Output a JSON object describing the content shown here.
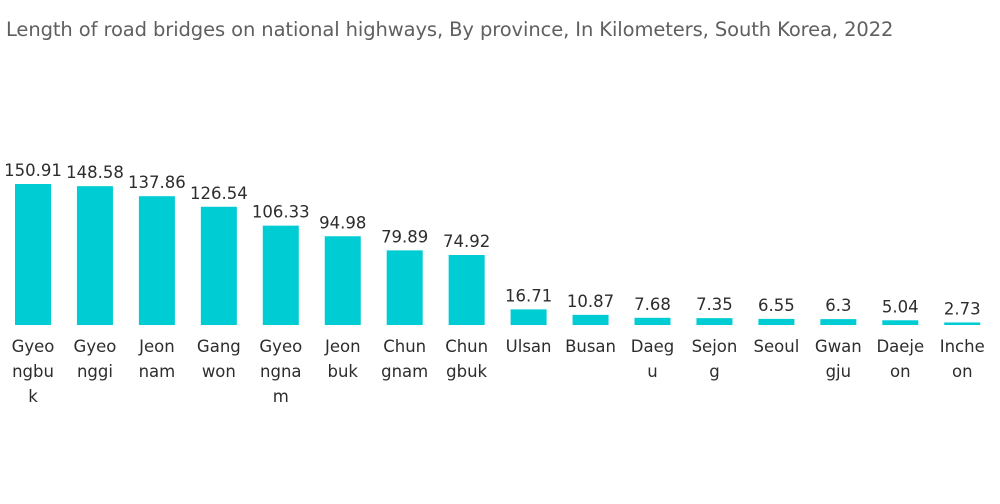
{
  "chart_data": {
    "type": "bar",
    "title": "Length of road bridges on national highways, By province, In Kilometers, South Korea, 2022",
    "xlabel": "",
    "ylabel": "",
    "color": "#00ccd3",
    "grid": false,
    "ylim": [
      0,
      150.91
    ],
    "categories": [
      [
        "Gyeo",
        "ngbu",
        "k"
      ],
      [
        "Gyeo",
        "nggi"
      ],
      [
        "Jeon",
        "nam"
      ],
      [
        "Gang",
        "won"
      ],
      [
        "Gyeo",
        "ngna",
        "m"
      ],
      [
        "Jeon",
        "buk"
      ],
      [
        "Chun",
        "gnam"
      ],
      [
        "Chun",
        "gbuk"
      ],
      [
        "Ulsan"
      ],
      [
        "Busan"
      ],
      [
        "Daeg",
        "u"
      ],
      [
        "Sejon",
        "g"
      ],
      [
        "Seoul"
      ],
      [
        "Gwan",
        "gju"
      ],
      [
        "Daeje",
        "on"
      ],
      [
        "Inche",
        "on"
      ]
    ],
    "values": [
      150.91,
      148.58,
      137.86,
      126.54,
      106.33,
      94.98,
      79.89,
      74.92,
      16.71,
      10.87,
      7.68,
      7.35,
      6.55,
      6.3,
      5.04,
      2.73
    ],
    "value_labels": [
      "150.91",
      "148.58",
      "137.86",
      "126.54",
      "106.33",
      "94.98",
      "79.89",
      "74.92",
      "16.71",
      "10.87",
      "7.68",
      "7.35",
      "6.55",
      "6.3",
      "5.04",
      "2.73"
    ]
  }
}
